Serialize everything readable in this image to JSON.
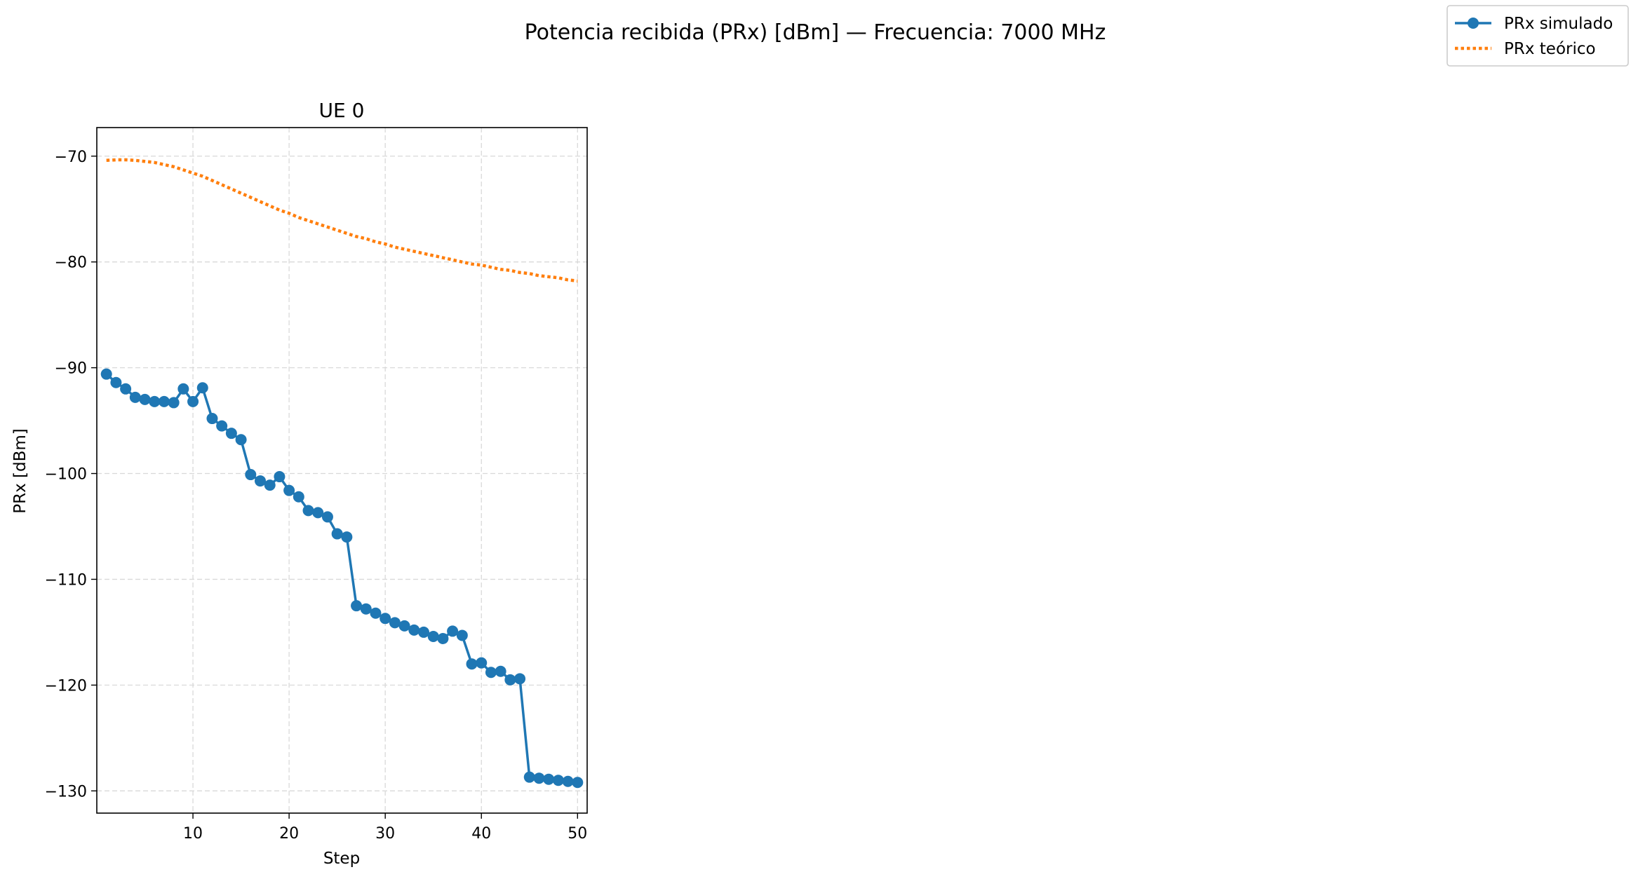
{
  "figure_title": "Potencia recibida (PRx) [dBm] — Frecuencia: 7000 MHz",
  "colors": {
    "simulated": "#1f77b4",
    "theoretical": "#ff7f0e",
    "grid": "#d9d9d9",
    "axes": "#000000",
    "legend_border": "#cccccc"
  },
  "chart_data": {
    "type": "line",
    "title": "UE 0",
    "xlabel": "Step",
    "ylabel": "PRx [dBm]",
    "xlim": [
      0,
      51
    ],
    "ylim": [
      -132.1,
      -67.3
    ],
    "xticks": [
      10,
      20,
      30,
      40,
      50
    ],
    "xtick_labels": [
      "10",
      "20",
      "30",
      "40",
      "50"
    ],
    "yticks": [
      -70,
      -80,
      -90,
      -100,
      -110,
      -120,
      -130
    ],
    "ytick_labels": [
      "−70",
      "−80",
      "−90",
      "−100",
      "−110",
      "−120",
      "−130"
    ],
    "grid": true,
    "grid_style": "dashed",
    "legend_placement": "figure top-right",
    "x": [
      1,
      2,
      3,
      4,
      5,
      6,
      7,
      8,
      9,
      10,
      11,
      12,
      13,
      14,
      15,
      16,
      17,
      18,
      19,
      20,
      21,
      22,
      23,
      24,
      25,
      26,
      27,
      28,
      29,
      30,
      31,
      32,
      33,
      34,
      35,
      36,
      37,
      38,
      39,
      40,
      41,
      42,
      43,
      44,
      45,
      46,
      47,
      48,
      49,
      50
    ],
    "series": [
      {
        "name": "PRx simulado",
        "style": "solid-line-with-circle-markers",
        "values": [
          -90.6,
          -91.4,
          -92.0,
          -92.8,
          -93.0,
          -93.2,
          -93.2,
          -93.3,
          -92.0,
          -93.2,
          -91.9,
          -94.8,
          -95.5,
          -96.2,
          -96.8,
          -100.1,
          -100.7,
          -101.1,
          -100.3,
          -101.6,
          -102.2,
          -103.5,
          -103.7,
          -104.1,
          -105.7,
          -106.0,
          -112.5,
          -112.8,
          -113.2,
          -113.7,
          -114.1,
          -114.4,
          -114.8,
          -115.0,
          -115.4,
          -115.6,
          -114.9,
          -115.3,
          -118.0,
          -117.9,
          -118.8,
          -118.7,
          -119.5,
          -119.4,
          -128.7,
          -128.8,
          -128.9,
          -129.0,
          -129.1,
          -129.2
        ]
      },
      {
        "name": "PRx teórico",
        "style": "dotted-line",
        "values": [
          -70.4,
          -70.35,
          -70.35,
          -70.4,
          -70.5,
          -70.6,
          -70.8,
          -71.0,
          -71.3,
          -71.6,
          -71.9,
          -72.3,
          -72.7,
          -73.1,
          -73.5,
          -73.9,
          -74.3,
          -74.7,
          -75.1,
          -75.4,
          -75.8,
          -76.1,
          -76.4,
          -76.7,
          -77.0,
          -77.3,
          -77.6,
          -77.8,
          -78.1,
          -78.3,
          -78.6,
          -78.8,
          -79.0,
          -79.2,
          -79.4,
          -79.6,
          -79.8,
          -80.0,
          -80.2,
          -80.3,
          -80.5,
          -80.7,
          -80.8,
          -81.0,
          -81.1,
          -81.3,
          -81.4,
          -81.5,
          -81.7,
          -81.8
        ]
      }
    ]
  }
}
